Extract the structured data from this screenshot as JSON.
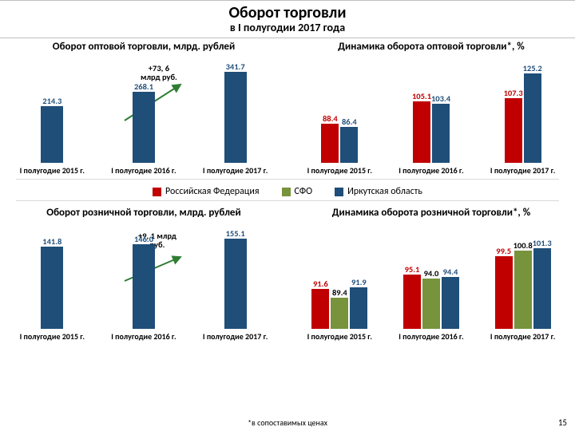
{
  "title": "Оборот торговли",
  "subtitle": "в I полугодии 2017 года",
  "colors": {
    "rf": "#c00000",
    "sfo": "#77933c",
    "irk": "#1f4e79",
    "text_rf": "#c00000",
    "text_irk": "#1f4e79",
    "arrow": "#2e7d32"
  },
  "legend": [
    {
      "key": "rf",
      "label": "Российская Федерация"
    },
    {
      "key": "sfo",
      "label": "СФО"
    },
    {
      "key": "irk",
      "label": "Иркутская область"
    }
  ],
  "chart1": {
    "title": "Оборот оптовой торговли,\nмлрд. рублей",
    "type": "bar",
    "ymax": 360,
    "categories": [
      "I полугодие 2015 г.",
      "I полугодие 2016 г.",
      "I полугодие 2017 г."
    ],
    "series_color": "irk",
    "values": [
      214.3,
      268.1,
      341.7
    ],
    "labels": [
      "214.3",
      "268.1",
      "341.7"
    ],
    "annotation": "+73, 6\nмлрд руб."
  },
  "chart2": {
    "title": "Динамика оборота оптовой торговли*, %",
    "type": "grouped-bar",
    "ymax": 130,
    "base": 60,
    "categories": [
      "I полугодие 2015 г.",
      "I полугодие 2016 г.",
      "I полугодие 2017 г."
    ],
    "groups": [
      {
        "rf": {
          "v": 88.4,
          "l": "88.4"
        },
        "irk": {
          "v": 86.4,
          "l": "86.4"
        }
      },
      {
        "rf": {
          "v": 105.1,
          "l": "105.1"
        },
        "irk": {
          "v": 103.4,
          "l": "103.4"
        }
      },
      {
        "rf": {
          "v": 107.3,
          "l": "107.3"
        },
        "irk": {
          "v": 125.2,
          "l": "125.2"
        }
      }
    ]
  },
  "chart3": {
    "title": "Оборот розничной торговли,\nмлрд. рублей",
    "type": "bar",
    "ymax": 165,
    "categories": [
      "I полугодие 2015 г.",
      "I полугодие 2016 г.",
      "I полугодие 2017 г."
    ],
    "series_color": "irk",
    "values": [
      141.8,
      146.0,
      155.1
    ],
    "labels": [
      "141.8",
      "146.0",
      "155.1"
    ],
    "annotation": "+9, 1 млрд\nруб."
  },
  "chart4": {
    "title": "Динамика оборота розничной торговли*,\n%",
    "type": "grouped-bar",
    "ymax": 105,
    "base": 82,
    "categories": [
      "I полугодие 2015 г.",
      "I полугодие 2016 г.",
      "I полугодие 2017 г."
    ],
    "groups": [
      {
        "rf": {
          "v": 91.6,
          "l": "91.6"
        },
        "sfo": {
          "v": 89.4,
          "l": "89.4"
        },
        "irk": {
          "v": 91.9,
          "l": "91.9"
        }
      },
      {
        "rf": {
          "v": 95.1,
          "l": "95.1"
        },
        "sfo": {
          "v": 94.0,
          "l": "94.0"
        },
        "irk": {
          "v": 94.4,
          "l": "94.4"
        }
      },
      {
        "rf": {
          "v": 99.5,
          "l": "99.5"
        },
        "sfo": {
          "v": 100.8,
          "l": "100.8"
        },
        "irk": {
          "v": 101.3,
          "l": "101.3"
        }
      }
    ]
  },
  "footnote": "*в сопоставимых ценах",
  "pagenum": "15"
}
